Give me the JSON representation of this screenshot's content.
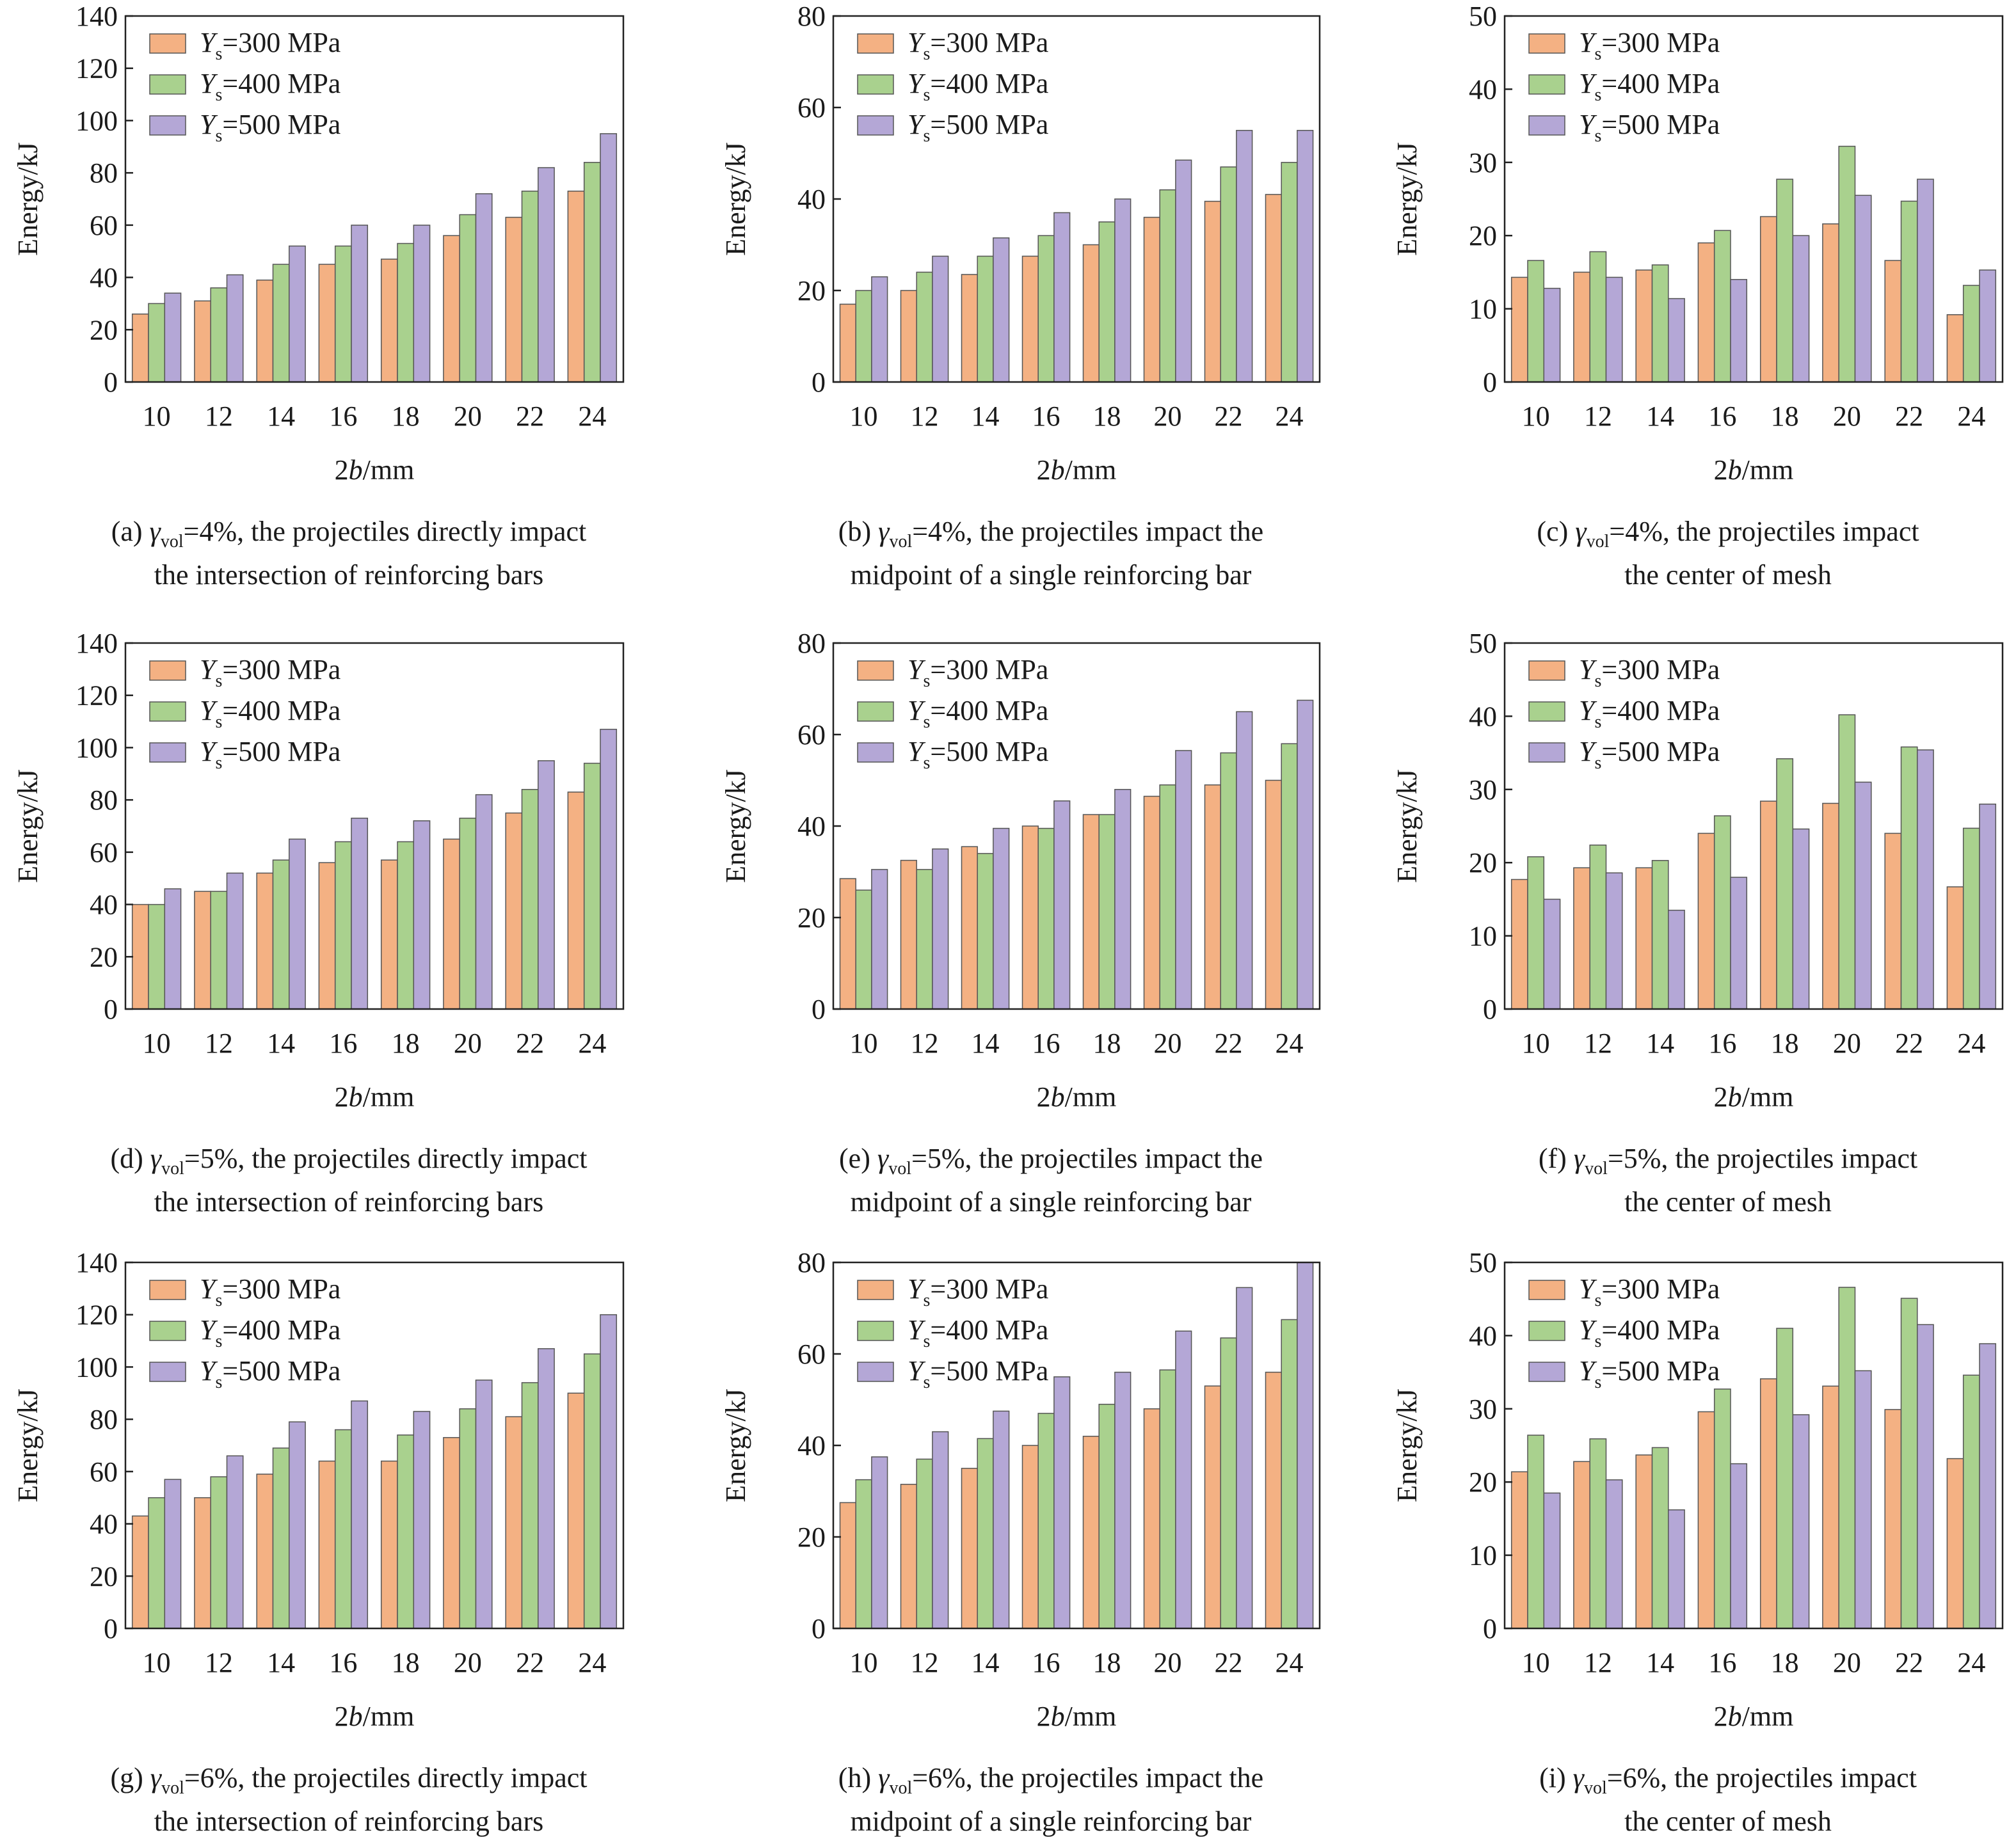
{
  "figure": {
    "legend_labels": [
      {
        "y_sym": "Y",
        "sub": "s",
        "rest": "=300 MPa"
      },
      {
        "y_sym": "Y",
        "sub": "s",
        "rest": "=400 MPa"
      },
      {
        "y_sym": "Y",
        "sub": "s",
        "rest": "=500 MPa"
      }
    ],
    "series_colors": [
      "#f4b183",
      "#a9d18e",
      "#b4a7d6"
    ],
    "series_stroke": "#555555",
    "ylabel": "Energy/kJ",
    "xlabel_parts": {
      "pre": "2",
      "ital": "b",
      "post": "/mm"
    },
    "categories": [
      "10",
      "12",
      "14",
      "16",
      "18",
      "20",
      "22",
      "24"
    ]
  },
  "chart_data": [
    {
      "type": "bar",
      "id": "a",
      "ylim": [
        0,
        140
      ],
      "yticks": [
        0,
        20,
        40,
        60,
        80,
        100,
        120,
        140
      ],
      "caption": {
        "line1_pre": "(a) ",
        "gamma": "γ",
        "sub": "vol",
        "line1_post": "=4%, the projectiles directly impact",
        "line2": "the intersection of reinforcing bars"
      },
      "series": [
        {
          "name": "Ys=300 MPa",
          "values": [
            26,
            31,
            39,
            45,
            47,
            56,
            63,
            73
          ]
        },
        {
          "name": "Ys=400 MPa",
          "values": [
            30,
            36,
            45,
            52,
            53,
            64,
            73,
            84
          ]
        },
        {
          "name": "Ys=500 MPa",
          "values": [
            34,
            41,
            52,
            60,
            60,
            72,
            82,
            95
          ]
        }
      ]
    },
    {
      "type": "bar",
      "id": "b",
      "ylim": [
        0,
        80
      ],
      "yticks": [
        0,
        20,
        40,
        60,
        80
      ],
      "caption": {
        "line1_pre": "(b) ",
        "gamma": "γ",
        "sub": "vol",
        "line1_post": "=4%, the projectiles impact the",
        "line2": "midpoint of a single reinforcing bar"
      },
      "series": [
        {
          "name": "Ys=300 MPa",
          "values": [
            17,
            20,
            23.5,
            27.5,
            30,
            36,
            39.5,
            41
          ]
        },
        {
          "name": "Ys=400 MPa",
          "values": [
            20,
            24,
            27.5,
            32,
            35,
            42,
            47,
            48
          ]
        },
        {
          "name": "Ys=500 MPa",
          "values": [
            23,
            27.5,
            31.5,
            37,
            40,
            48.5,
            55,
            55
          ]
        }
      ]
    },
    {
      "type": "bar",
      "id": "c",
      "ylim": [
        0,
        50
      ],
      "yticks": [
        0,
        10,
        20,
        30,
        40,
        50
      ],
      "caption": {
        "line1_pre": "(c) ",
        "gamma": "γ",
        "sub": "vol",
        "line1_post": "=4%, the projectiles impact",
        "line2": "the center of mesh"
      },
      "series": [
        {
          "name": "Ys=300 MPa",
          "values": [
            14.3,
            15,
            15.3,
            19,
            22.6,
            21.6,
            16.6,
            9.2
          ]
        },
        {
          "name": "Ys=400 MPa",
          "values": [
            16.6,
            17.8,
            16,
            20.7,
            27.7,
            32.2,
            24.7,
            13.2
          ]
        },
        {
          "name": "Ys=500 MPa",
          "values": [
            12.8,
            14.3,
            11.4,
            14,
            20,
            25.5,
            27.7,
            15.3
          ]
        }
      ]
    },
    {
      "type": "bar",
      "id": "d",
      "ylim": [
        0,
        140
      ],
      "yticks": [
        0,
        20,
        40,
        60,
        80,
        100,
        120,
        140
      ],
      "caption": {
        "line1_pre": "(d) ",
        "gamma": "γ",
        "sub": "vol",
        "line1_post": "=5%, the projectiles directly impact",
        "line2": "the intersection of reinforcing bars"
      },
      "series": [
        {
          "name": "Ys=300 MPa",
          "values": [
            40,
            45,
            52,
            56,
            57,
            65,
            75,
            83
          ]
        },
        {
          "name": "Ys=400 MPa",
          "values": [
            40,
            45,
            57,
            64,
            64,
            73,
            84,
            94
          ]
        },
        {
          "name": "Ys=500 MPa",
          "values": [
            46,
            52,
            65,
            73,
            72,
            82,
            95,
            107
          ]
        }
      ]
    },
    {
      "type": "bar",
      "id": "e",
      "ylim": [
        0,
        80
      ],
      "yticks": [
        0,
        20,
        40,
        60,
        80
      ],
      "caption": {
        "line1_pre": "(e) ",
        "gamma": "γ",
        "sub": "vol",
        "line1_post": "=5%, the projectiles impact the",
        "line2": "midpoint of a single reinforcing bar"
      },
      "series": [
        {
          "name": "Ys=300 MPa",
          "values": [
            28.5,
            32.5,
            35.5,
            40,
            42.5,
            46.5,
            49,
            50
          ]
        },
        {
          "name": "Ys=400 MPa",
          "values": [
            26,
            30.5,
            34,
            39.5,
            42.5,
            49,
            56,
            58
          ]
        },
        {
          "name": "Ys=500 MPa",
          "values": [
            30.5,
            35,
            39.5,
            45.5,
            48,
            56.5,
            65,
            67.5
          ]
        }
      ]
    },
    {
      "type": "bar",
      "id": "f",
      "ylim": [
        0,
        50
      ],
      "yticks": [
        0,
        10,
        20,
        30,
        40,
        50
      ],
      "caption": {
        "line1_pre": "(f) ",
        "gamma": "γ",
        "sub": "vol",
        "line1_post": "=5%, the projectiles impact",
        "line2": "the center of mesh"
      },
      "series": [
        {
          "name": "Ys=300 MPa",
          "values": [
            17.7,
            19.3,
            19.3,
            24,
            28.4,
            28.1,
            24,
            16.7
          ]
        },
        {
          "name": "Ys=400 MPa",
          "values": [
            20.8,
            22.4,
            20.3,
            26.4,
            34.2,
            40.2,
            35.8,
            24.7
          ]
        },
        {
          "name": "Ys=500 MPa",
          "values": [
            15,
            18.6,
            13.5,
            18,
            24.6,
            31,
            35.4,
            28
          ]
        }
      ]
    },
    {
      "type": "bar",
      "id": "g",
      "ylim": [
        0,
        140
      ],
      "yticks": [
        0,
        20,
        40,
        60,
        80,
        100,
        120,
        140
      ],
      "caption": {
        "line1_pre": "(g) ",
        "gamma": "γ",
        "sub": "vol",
        "line1_post": "=6%, the projectiles directly impact",
        "line2": "the intersection of reinforcing bars"
      },
      "series": [
        {
          "name": "Ys=300 MPa",
          "values": [
            43,
            50,
            59,
            64,
            64,
            73,
            81,
            90
          ]
        },
        {
          "name": "Ys=400 MPa",
          "values": [
            50,
            58,
            69,
            76,
            74,
            84,
            94,
            105
          ]
        },
        {
          "name": "Ys=500 MPa",
          "values": [
            57,
            66,
            79,
            87,
            83,
            95,
            107,
            120
          ]
        }
      ]
    },
    {
      "type": "bar",
      "id": "h",
      "ylim": [
        0,
        80
      ],
      "yticks": [
        0,
        20,
        40,
        60,
        80
      ],
      "caption": {
        "line1_pre": "(h) ",
        "gamma": "γ",
        "sub": "vol",
        "line1_post": "=6%, the projectiles impact the",
        "line2": "midpoint of a single reinforcing bar"
      },
      "series": [
        {
          "name": "Ys=300 MPa",
          "values": [
            27.5,
            31.5,
            35,
            40,
            42,
            48,
            53,
            56
          ]
        },
        {
          "name": "Ys=400 MPa",
          "values": [
            32.5,
            37,
            41.5,
            47,
            49,
            56.5,
            63.5,
            67.5
          ]
        },
        {
          "name": "Ys=500 MPa",
          "values": [
            37.5,
            43,
            47.5,
            55,
            56,
            65,
            74.5,
            80
          ]
        }
      ]
    },
    {
      "type": "bar",
      "id": "i",
      "ylim": [
        0,
        50
      ],
      "yticks": [
        0,
        10,
        20,
        30,
        40,
        50
      ],
      "caption": {
        "line1_pre": "(i) ",
        "gamma": "γ",
        "sub": "vol",
        "line1_post": "=6%, the projectiles impact",
        "line2": "the center of mesh"
      },
      "series": [
        {
          "name": "Ys=300 MPa",
          "values": [
            21.4,
            22.8,
            23.7,
            29.6,
            34.1,
            33.1,
            29.9,
            23.2
          ]
        },
        {
          "name": "Ys=400 MPa",
          "values": [
            26.4,
            25.9,
            24.7,
            32.7,
            41,
            46.6,
            45.1,
            34.6
          ]
        },
        {
          "name": "Ys=500 MPa",
          "values": [
            18.5,
            20.3,
            16.2,
            22.5,
            29.2,
            35.2,
            41.5,
            38.9
          ]
        }
      ]
    }
  ]
}
